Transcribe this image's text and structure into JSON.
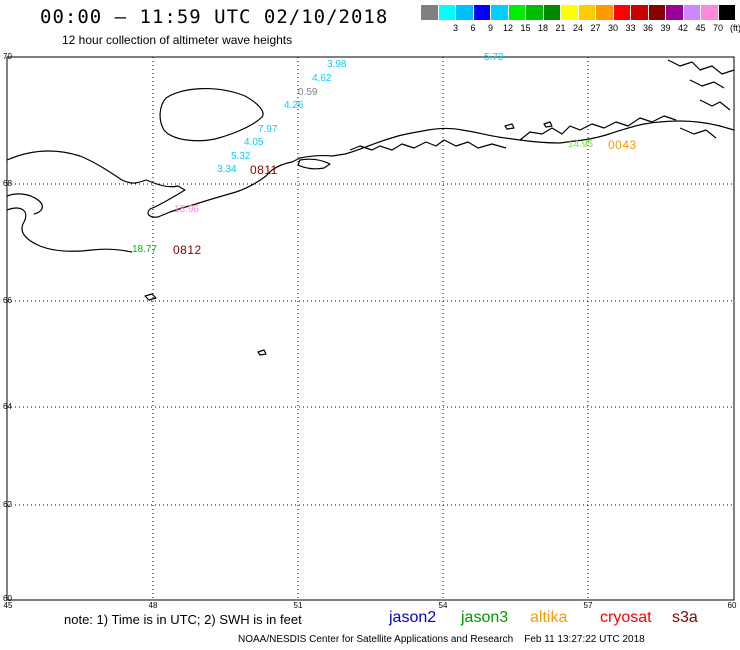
{
  "header": {
    "title": "00:00 – 11:59 UTC 02/10/2018",
    "subtitle": "12 hour collection of altimeter wave heights"
  },
  "legend": {
    "swatches": [
      {
        "color": "#808080",
        "label": ""
      },
      {
        "color": "#00ffff",
        "label": "3"
      },
      {
        "color": "#00bfff",
        "label": "6"
      },
      {
        "color": "#0000ff",
        "label": "9"
      },
      {
        "color": "#00d0ff",
        "label": "12"
      },
      {
        "color": "#00ee00",
        "label": "15"
      },
      {
        "color": "#00bb00",
        "label": "18"
      },
      {
        "color": "#008800",
        "label": "21"
      },
      {
        "color": "#ffff00",
        "label": "24"
      },
      {
        "color": "#ffcc00",
        "label": "27"
      },
      {
        "color": "#ff9900",
        "label": "30"
      },
      {
        "color": "#ff0000",
        "label": "33"
      },
      {
        "color": "#cc0000",
        "label": "36"
      },
      {
        "color": "#880000",
        "label": "39"
      },
      {
        "color": "#990099",
        "label": "42"
      },
      {
        "color": "#cc88ff",
        "label": "45"
      },
      {
        "color": "#ff88dd",
        "label": "70"
      },
      {
        "color": "#000000",
        "label": "(ft)"
      }
    ]
  },
  "axes": {
    "lat_ticks": [
      "70",
      "68",
      "66",
      "64",
      "62",
      "60"
    ],
    "lon_ticks": [
      "45",
      "48",
      "51",
      "54",
      "57",
      "60"
    ]
  },
  "observations": [
    {
      "value": "5.73",
      "color": "#00d0ff"
    },
    {
      "value": "3.98",
      "color": "#00d0ff"
    },
    {
      "value": "4.62",
      "color": "#00d0ff"
    },
    {
      "value": "0.59",
      "color": "#808080"
    },
    {
      "value": "4.26",
      "color": "#00d0ff"
    },
    {
      "value": "7.97",
      "color": "#00d0ff"
    },
    {
      "value": "4.05",
      "color": "#00d0ff"
    },
    {
      "value": "5.32",
      "color": "#00d0ff"
    },
    {
      "value": "3.34",
      "color": "#00d0ff"
    },
    {
      "value": "18.96",
      "color": "#ff88dd"
    },
    {
      "value": "18.77",
      "color": "#00bb00"
    },
    {
      "value": "14.95",
      "color": "#77dd44"
    }
  ],
  "pass_times": [
    {
      "time": "0811",
      "color": "#880000"
    },
    {
      "time": "0812",
      "color": "#880000"
    },
    {
      "time": "0043",
      "color": "#ff9900"
    }
  ],
  "footer": {
    "note": "note: 1) Time is in UTC; 2) SWH is in feet",
    "satellites": [
      {
        "name": "jason2",
        "color": "#0000cc"
      },
      {
        "name": "jason3",
        "color": "#009900"
      },
      {
        "name": "altika",
        "color": "#ff9900"
      },
      {
        "name": "cryosat",
        "color": "#ff0000"
      },
      {
        "name": "s3a",
        "color": "#880000"
      }
    ],
    "credit": "NOAA/NESDIS Center for Satellite Applications and Research",
    "timestamp": "Feb 11 13:27:22 UTC 2018"
  }
}
